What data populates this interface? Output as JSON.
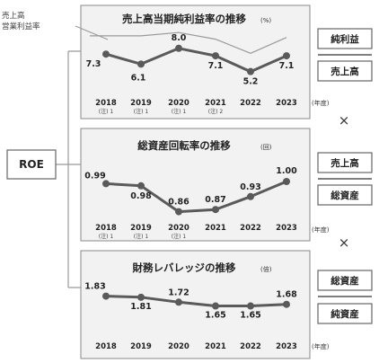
{
  "legend_note": {
    "line1": "売上高",
    "line2": "営業利益率"
  },
  "roe_label": "ROE",
  "operator_symbol": "×",
  "unit_year": "(年度)",
  "colors": {
    "main_line": "#5a5a5a",
    "secondary_line": "#9a9a9a",
    "panel_bg": "#f2f2f2"
  },
  "chart_data": [
    {
      "type": "line",
      "title": "売上高当期純利益率の推移",
      "title_unit": "(%)",
      "categories": [
        "2018",
        "2019",
        "2020",
        "2021",
        "2022",
        "2023"
      ],
      "notes": [
        "(注) 1",
        "(注) 1",
        "(注) 1",
        "(注) 2",
        "",
        ""
      ],
      "series": [
        {
          "name": "売上高営業利益率",
          "values": [
            null,
            9.5,
            9.9,
            9.1,
            7.4,
            9.3
          ]
        },
        {
          "name": "売上高当期純利益率",
          "values": [
            7.3,
            6.1,
            8.0,
            7.1,
            5.2,
            7.1
          ],
          "labels": [
            "7.3",
            "6.1",
            "8.0",
            "7.1",
            "5.2",
            "7.1"
          ]
        }
      ],
      "ylim": [
        3,
        11
      ],
      "formula": {
        "numerator": "純利益",
        "denominator": "売上高"
      }
    },
    {
      "type": "line",
      "title": "総資産回転率の推移",
      "title_unit": "(回)",
      "categories": [
        "2018",
        "2019",
        "2020",
        "2021",
        "2022",
        "2023"
      ],
      "notes": [
        "(注) 1",
        "(注) 1",
        "(注) 1",
        "",
        "",
        ""
      ],
      "series": [
        {
          "values": [
            0.99,
            0.98,
            0.86,
            0.87,
            0.93,
            1.0
          ],
          "labels": [
            "0.99",
            "0.98",
            "0.86",
            "0.87",
            "0.93",
            "1.00"
          ]
        }
      ],
      "ylim": [
        0.8,
        1.05
      ],
      "formula": {
        "numerator": "売上高",
        "denominator": "総資産"
      }
    },
    {
      "type": "line",
      "title": "財務レバレッジの推移",
      "title_unit": "(倍)",
      "categories": [
        "2018",
        "2019",
        "2020",
        "2021",
        "2022",
        "2023"
      ],
      "notes": [
        "",
        "",
        "",
        "",
        "",
        ""
      ],
      "series": [
        {
          "values": [
            1.83,
            1.81,
            1.72,
            1.65,
            1.65,
            1.68
          ],
          "labels": [
            "1.83",
            "1.81",
            "1.72",
            "1.65",
            "1.65",
            "1.68"
          ]
        }
      ],
      "ylim": [
        1.0,
        2.4
      ],
      "formula": {
        "numerator": "総資産",
        "denominator": "純資産"
      }
    }
  ]
}
